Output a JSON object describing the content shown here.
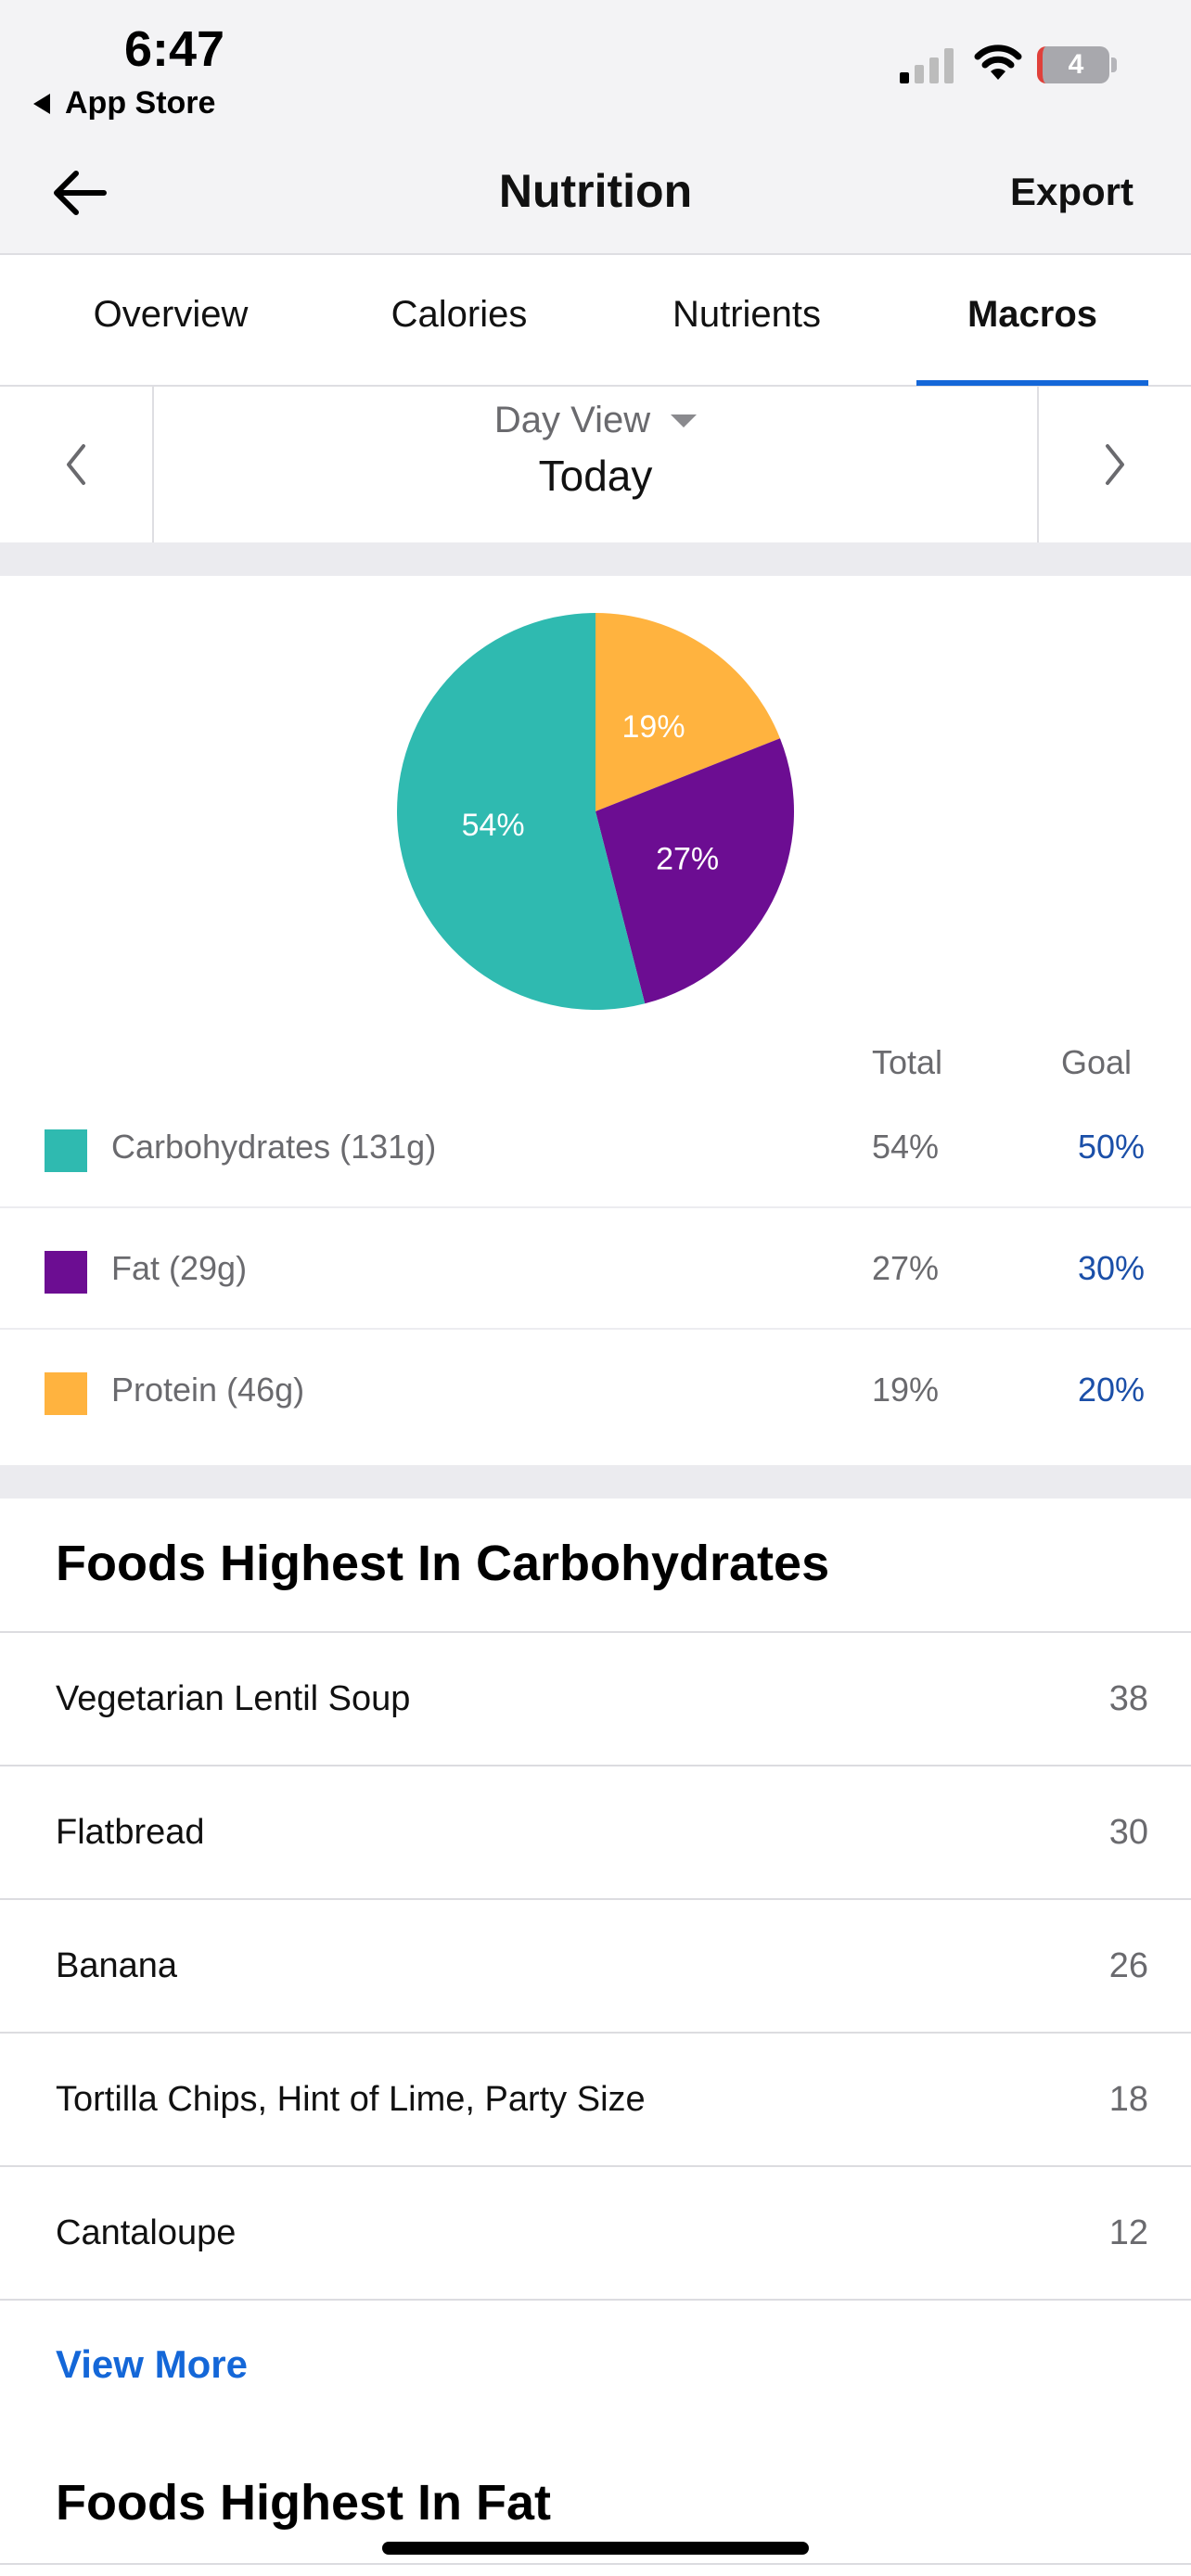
{
  "status_bar": {
    "time": "6:47",
    "back_app_label": "App Store",
    "battery_level": "4"
  },
  "nav": {
    "title": "Nutrition",
    "export_label": "Export"
  },
  "tabs": [
    {
      "label": "Overview",
      "active": false
    },
    {
      "label": "Calories",
      "active": false
    },
    {
      "label": "Nutrients",
      "active": false
    },
    {
      "label": "Macros",
      "active": true
    }
  ],
  "date_nav": {
    "view_label": "Day View",
    "date_label": "Today"
  },
  "colors": {
    "carbs": "#2fbab0",
    "fat": "#6c0d92",
    "protein": "#ffb33f",
    "accent": "#1467d8",
    "goal_text": "#1b4fa8"
  },
  "chart_data": {
    "type": "pie",
    "slices": [
      {
        "name": "Protein",
        "value": 19,
        "label": "19%",
        "color": "#ffb33f"
      },
      {
        "name": "Fat",
        "value": 27,
        "label": "27%",
        "color": "#6c0d92"
      },
      {
        "name": "Carbohydrates",
        "value": 54,
        "label": "54%",
        "color": "#2fbab0"
      }
    ]
  },
  "macros": {
    "total_header": "Total",
    "goal_header": "Goal",
    "rows": [
      {
        "name": "Carbohydrates (131g)",
        "total": "54%",
        "goal": "50%",
        "color": "#2fbab0"
      },
      {
        "name": "Fat (29g)",
        "total": "27%",
        "goal": "30%",
        "color": "#6c0d92"
      },
      {
        "name": "Protein (46g)",
        "total": "19%",
        "goal": "20%",
        "color": "#ffb33f"
      }
    ]
  },
  "carbs_section": {
    "title": "Foods Highest In Carbohydrates",
    "items": [
      {
        "name": "Vegetarian Lentil Soup",
        "value": "38"
      },
      {
        "name": "Flatbread",
        "value": "30"
      },
      {
        "name": "Banana",
        "value": "26"
      },
      {
        "name": "Tortilla Chips, Hint of Lime, Party Size",
        "value": "18"
      },
      {
        "name": "Cantaloupe",
        "value": "12"
      }
    ],
    "view_more_label": "View More"
  },
  "fat_section": {
    "title": "Foods Highest In Fat"
  }
}
